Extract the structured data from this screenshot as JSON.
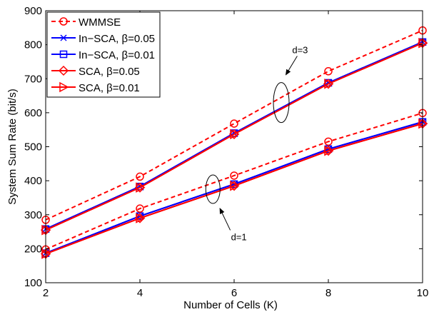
{
  "chart_data": {
    "type": "line",
    "xlabel": "Number of Cells (K)",
    "ylabel": "System Sum Rate (bit/s)",
    "xlim": [
      2,
      10
    ],
    "ylim": [
      100,
      900
    ],
    "x_ticks": [
      2,
      4,
      6,
      8,
      10
    ],
    "y_ticks": [
      100,
      200,
      300,
      400,
      500,
      600,
      700,
      800,
      900
    ],
    "x_tick_labels": [
      "2",
      "4",
      "6",
      "8",
      "10"
    ],
    "y_tick_labels": [
      "100",
      "200",
      "300",
      "400",
      "500",
      "600",
      "700",
      "800",
      "900"
    ],
    "grid": false,
    "legend_position": "top-left",
    "x": [
      2,
      4,
      6,
      8,
      10
    ],
    "series": [
      {
        "name": "WMMSE",
        "group": "d=3",
        "color": "#ff0000",
        "dash": "dashed",
        "marker": "circle",
        "values": [
          285,
          412,
          568,
          722,
          842
        ]
      },
      {
        "name": "In−SCA, β=0.05",
        "group": "d=3",
        "color": "#0000ff",
        "dash": "solid",
        "marker": "x",
        "values": [
          258,
          383,
          540,
          688,
          808
        ]
      },
      {
        "name": "In−SCA, β=0.01",
        "group": "d=3",
        "color": "#0000ff",
        "dash": "solid",
        "marker": "square",
        "values": [
          258,
          383,
          540,
          688,
          808
        ]
      },
      {
        "name": "SCA, β=0.05",
        "group": "d=3",
        "color": "#ff0000",
        "dash": "solid",
        "marker": "diamond",
        "values": [
          255,
          380,
          537,
          685,
          805
        ]
      },
      {
        "name": "SCA, β=0.01",
        "group": "d=3",
        "color": "#ff0000",
        "dash": "solid",
        "marker": "triangle-right",
        "values": [
          255,
          380,
          537,
          685,
          805
        ]
      },
      {
        "name": "WMMSE",
        "group": "d=1",
        "color": "#ff0000",
        "dash": "dashed",
        "marker": "circle",
        "values": [
          198,
          318,
          415,
          515,
          599
        ]
      },
      {
        "name": "In−SCA, β=0.05",
        "group": "d=1",
        "color": "#0000ff",
        "dash": "solid",
        "marker": "x",
        "values": [
          187,
          296,
          390,
          493,
          573
        ]
      },
      {
        "name": "In−SCA, β=0.01",
        "group": "d=1",
        "color": "#0000ff",
        "dash": "solid",
        "marker": "square",
        "values": [
          187,
          296,
          390,
          493,
          573
        ]
      },
      {
        "name": "SCA, β=0.05",
        "group": "d=1",
        "color": "#ff0000",
        "dash": "solid",
        "marker": "diamond",
        "values": [
          185,
          290,
          385,
          488,
          568
        ]
      },
      {
        "name": "SCA, β=0.01",
        "group": "d=1",
        "color": "#ff0000",
        "dash": "solid",
        "marker": "triangle-right",
        "values": [
          185,
          290,
          385,
          488,
          568
        ]
      }
    ],
    "legend": [
      {
        "label": "WMMSE",
        "color": "#ff0000",
        "dash": "dashed",
        "marker": "circle"
      },
      {
        "label": "In−SCA, β=0.05",
        "color": "#0000ff",
        "dash": "solid",
        "marker": "x"
      },
      {
        "label": "In−SCA, β=0.01",
        "color": "#0000ff",
        "dash": "solid",
        "marker": "square"
      },
      {
        "label": "SCA, β=0.05",
        "color": "#ff0000",
        "dash": "solid",
        "marker": "diamond"
      },
      {
        "label": "SCA, β=0.01",
        "color": "#ff0000",
        "dash": "solid",
        "marker": "triangle-right"
      }
    ],
    "annotations": [
      {
        "text": "d=3",
        "ellipse_center": [
          7,
          630
        ],
        "label_at": [
          7.4,
          775
        ],
        "arrow_to": [
          7.1,
          712
        ]
      },
      {
        "text": "d=1",
        "ellipse_center": [
          5.55,
          375
        ],
        "label_at": [
          6.1,
          225
        ],
        "arrow_to": [
          5.7,
          318
        ]
      }
    ]
  }
}
